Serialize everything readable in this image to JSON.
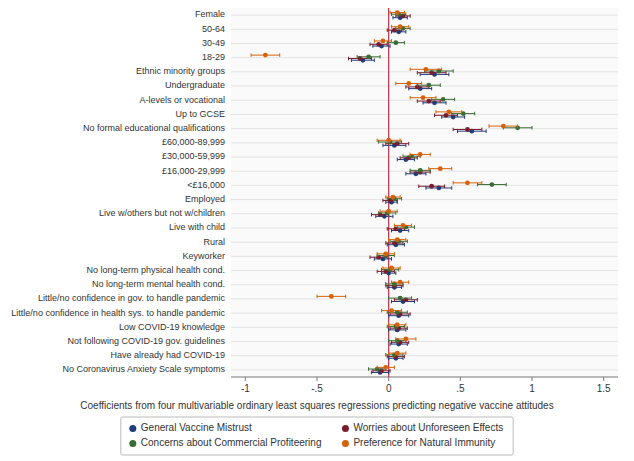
{
  "chart_data": {
    "type": "forest",
    "orientation": "horizontal",
    "categories": [
      "Female",
      "50-64",
      "30-49",
      "18-29",
      "Ethnic minority groups",
      "Undergraduate",
      "A-levels or vocational",
      "Up to GCSE",
      "No formal educational qualifications",
      "£60,000-89,999",
      "£30,000-59,999",
      "£16,000-29,999",
      "<£16,000",
      "Employed",
      "Live w/others but not w/children",
      "Live with child",
      "Rural",
      "Keyworker",
      "No long-term physical health cond.",
      "No long-term mental health cond.",
      "Little/no confidence in gov. to handle pandemic",
      "Little/no confidence in health sys. to handle pandemic",
      "Low COVID-19 knowledge",
      "Not following COVID-19 gov. guidelines",
      "Have already had COVID-19",
      "No Coronavirus Anxiety Scale symptoms"
    ],
    "series": [
      {
        "name": "General Vaccine Mistrust",
        "color": "#1f3d7a",
        "values": [
          0.08,
          0.07,
          -0.05,
          -0.18,
          0.32,
          0.22,
          0.32,
          0.45,
          0.58,
          0.04,
          0.12,
          0.19,
          0.35,
          0.02,
          -0.03,
          0.08,
          0.05,
          -0.04,
          0.0,
          0.04,
          0.1,
          0.07,
          0.06,
          0.07,
          0.05,
          -0.06
        ],
        "ci_low": [
          0.03,
          0.02,
          -0.11,
          -0.26,
          0.22,
          0.14,
          0.24,
          0.37,
          0.48,
          -0.04,
          0.06,
          0.12,
          0.26,
          -0.02,
          -0.09,
          0.02,
          -0.01,
          -0.1,
          -0.05,
          -0.01,
          0.02,
          0.0,
          0.0,
          0.01,
          0.0,
          -0.12
        ],
        "ci_high": [
          0.13,
          0.12,
          0.01,
          -0.1,
          0.42,
          0.3,
          0.4,
          0.53,
          0.68,
          0.12,
          0.18,
          0.26,
          0.44,
          0.06,
          0.03,
          0.14,
          0.11,
          0.02,
          0.05,
          0.09,
          0.18,
          0.14,
          0.12,
          0.13,
          0.1,
          0.0
        ]
      },
      {
        "name": "Worries about Unforeseen Effects",
        "color": "#7b1c2e",
        "values": [
          0.1,
          0.04,
          -0.07,
          -0.2,
          0.3,
          0.2,
          0.28,
          0.4,
          0.55,
          0.06,
          0.14,
          0.22,
          0.3,
          0.01,
          -0.06,
          0.05,
          0.04,
          -0.07,
          -0.02,
          0.04,
          0.12,
          0.08,
          0.07,
          0.08,
          0.05,
          -0.05
        ],
        "ci_low": [
          0.05,
          -0.01,
          -0.13,
          -0.28,
          0.2,
          0.12,
          0.2,
          0.32,
          0.45,
          -0.02,
          0.08,
          0.15,
          0.21,
          -0.04,
          -0.12,
          -0.01,
          -0.02,
          -0.13,
          -0.08,
          -0.02,
          0.04,
          0.01,
          0.01,
          0.02,
          -0.01,
          -0.11
        ],
        "ci_high": [
          0.15,
          0.09,
          -0.01,
          -0.12,
          0.4,
          0.28,
          0.36,
          0.48,
          0.65,
          0.14,
          0.2,
          0.29,
          0.39,
          0.06,
          0.0,
          0.11,
          0.1,
          -0.01,
          0.04,
          0.1,
          0.2,
          0.15,
          0.13,
          0.14,
          0.11,
          0.01
        ]
      },
      {
        "name": "Concerns about Commercial Profiteering",
        "color": "#3b6b35",
        "values": [
          0.07,
          0.1,
          0.05,
          -0.14,
          0.35,
          0.28,
          0.38,
          0.52,
          0.9,
          0.01,
          0.16,
          0.22,
          0.72,
          0.04,
          -0.01,
          0.12,
          0.07,
          -0.02,
          0.01,
          0.04,
          0.08,
          0.06,
          0.05,
          0.06,
          0.04,
          -0.08
        ],
        "ci_low": [
          0.02,
          0.05,
          -0.01,
          -0.22,
          0.25,
          0.2,
          0.3,
          0.44,
          0.8,
          -0.07,
          0.1,
          0.15,
          0.62,
          -0.01,
          -0.07,
          0.06,
          0.01,
          -0.08,
          -0.05,
          -0.02,
          0.0,
          -0.01,
          -0.01,
          0.0,
          -0.02,
          -0.14
        ],
        "ci_high": [
          0.12,
          0.15,
          0.11,
          -0.06,
          0.45,
          0.36,
          0.46,
          0.6,
          1.0,
          0.09,
          0.22,
          0.29,
          0.82,
          0.09,
          0.05,
          0.18,
          0.13,
          0.04,
          0.07,
          0.1,
          0.16,
          0.13,
          0.11,
          0.12,
          0.1,
          -0.02
        ]
      },
      {
        "name": "Preference for Natural Immunity",
        "color": "#d4620a",
        "values": [
          0.06,
          0.08,
          -0.04,
          -0.86,
          0.26,
          0.14,
          0.24,
          0.42,
          0.8,
          0.0,
          0.22,
          0.36,
          0.55,
          0.03,
          0.0,
          0.1,
          0.06,
          -0.02,
          0.02,
          0.08,
          -0.4,
          0.02,
          0.06,
          0.12,
          0.06,
          -0.02
        ],
        "ci_low": [
          0.01,
          0.02,
          -0.1,
          -0.96,
          0.15,
          0.05,
          0.15,
          0.33,
          0.7,
          -0.08,
          0.15,
          0.28,
          0.45,
          -0.02,
          -0.06,
          0.04,
          0.0,
          -0.08,
          -0.04,
          0.02,
          -0.5,
          -0.05,
          0.0,
          0.05,
          0.0,
          -0.08
        ],
        "ci_high": [
          0.11,
          0.14,
          0.02,
          -0.76,
          0.37,
          0.23,
          0.33,
          0.51,
          0.9,
          0.08,
          0.29,
          0.44,
          0.65,
          0.08,
          0.06,
          0.16,
          0.12,
          0.04,
          0.08,
          0.14,
          -0.3,
          0.09,
          0.12,
          0.19,
          0.12,
          0.04
        ]
      }
    ],
    "xlim": [
      -1.1,
      1.6
    ],
    "xticks": [
      -1,
      {
        "value": -0.5,
        "label": "-.5"
      },
      0,
      {
        "value": 0.5,
        "label": ".5"
      },
      1,
      1.5
    ],
    "xlabel": "Coefficients from four multivariable ordinary least squares regressions predicting negative vaccine attitudes",
    "vline": {
      "x": 0,
      "color": "#c0304a"
    },
    "grid": true,
    "legend": "bottom"
  }
}
